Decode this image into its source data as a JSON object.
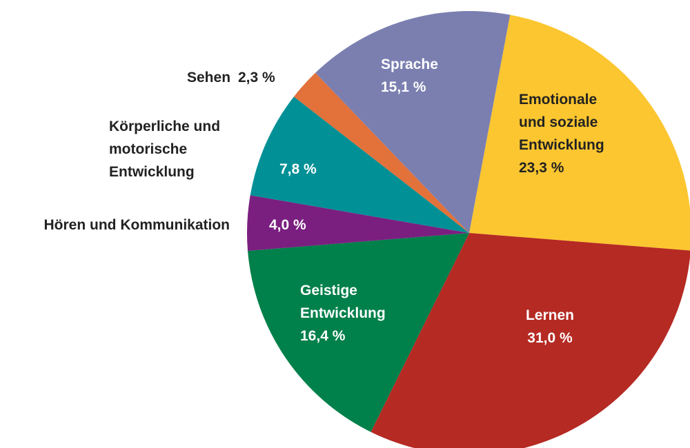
{
  "chart_data": {
    "type": "pie",
    "categories": [
      "Emotionale\nund soziale\nEntwicklung",
      "Lernen",
      "Geistige\nEntwicklung",
      "Hören und Kommunikation",
      "Körperliche und\nmotorische\nEntwicklung",
      "Sehen",
      "Sprache"
    ],
    "values": [
      23.3,
      31.0,
      16.4,
      4.0,
      7.8,
      2.3,
      15.1
    ],
    "value_labels": [
      "23,3 %",
      "31,0 %",
      "16,4 %",
      "4,0 %",
      "7,8 %",
      "2,3 %",
      "15,1 %"
    ],
    "colors": [
      "#fcc630",
      "#b52a23",
      "#00804a",
      "#7a1f80",
      "#009096",
      "#e2713a",
      "#7b7fb0"
    ]
  }
}
